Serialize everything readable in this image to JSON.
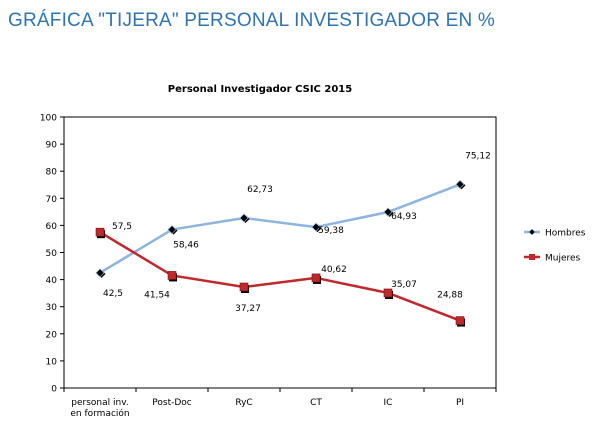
{
  "page": {
    "heading": "GRÁFICA \"TIJERA\" PERSONAL INVESTIGADOR EN %"
  },
  "chart_data": {
    "type": "line",
    "title": "Personal Investigador CSIC 2015",
    "xlabel": "",
    "ylabel": "",
    "categories": [
      "personal inv.\nen formación",
      "Post-Doc",
      "RyC",
      "CT",
      "IC",
      "PI"
    ],
    "ylim": [
      0,
      100
    ],
    "yticks": [
      0,
      10,
      20,
      30,
      40,
      50,
      60,
      70,
      80,
      90,
      100
    ],
    "grid": false,
    "legend_position": "right",
    "series": [
      {
        "name": "Hombres",
        "values": [
          42.5,
          58.46,
          62.73,
          59.38,
          64.93,
          75.12
        ],
        "labels": [
          "42,5",
          "58,46",
          "62,73",
          "59,38",
          "64,93",
          "75,12"
        ],
        "color": "#8db4e2",
        "marker": "diamond"
      },
      {
        "name": "Mujeres",
        "values": [
          57.5,
          41.54,
          37.27,
          40.62,
          35.07,
          24.88
        ],
        "labels": [
          "57,5",
          "41,54",
          "37,27",
          "40,62",
          "35,07",
          "24,88"
        ],
        "color": "#c0282c",
        "marker": "square"
      }
    ]
  }
}
